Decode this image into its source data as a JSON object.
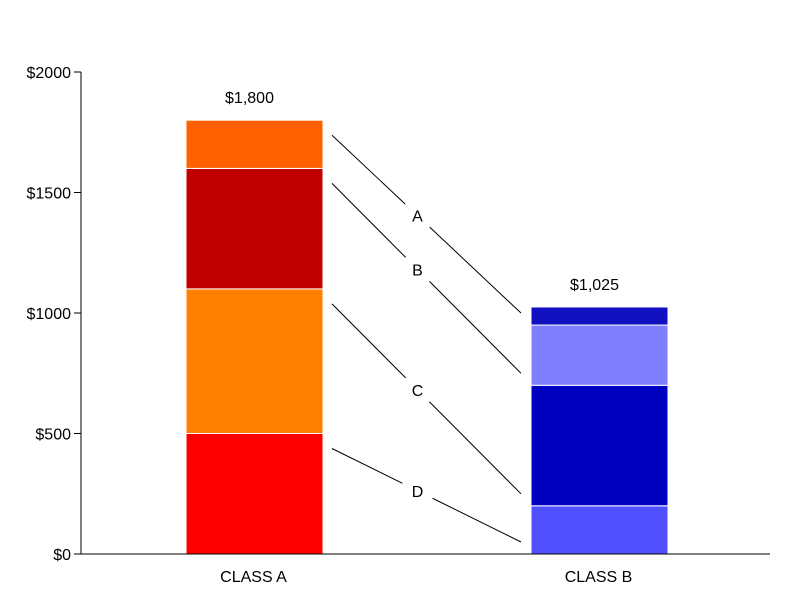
{
  "chart_data": {
    "type": "bar",
    "stacked": true,
    "categories": [
      "CLASS A",
      "CLASS B"
    ],
    "series": [
      {
        "name": "D",
        "values": [
          500,
          200
        ],
        "colors": [
          "#ff0000",
          "#5050ff"
        ]
      },
      {
        "name": "C",
        "values": [
          600,
          500
        ],
        "colors": [
          "#ff8000",
          "#0000c0"
        ]
      },
      {
        "name": "B",
        "values": [
          500,
          250
        ],
        "colors": [
          "#c00000",
          "#8080ff"
        ]
      },
      {
        "name": "A",
        "values": [
          200,
          75
        ],
        "colors": [
          "#ff6000",
          "#1010c0"
        ]
      }
    ],
    "totals": [
      1800,
      1025
    ],
    "total_labels": [
      "$1,800",
      "$1,025"
    ],
    "yticks": [
      "$0",
      "$500",
      "$1000",
      "$1500",
      "$2000"
    ],
    "ylim": [
      0,
      2000
    ],
    "title": "",
    "xlabel": "",
    "ylabel": "",
    "legend": "connector labels between bars",
    "grid": false
  }
}
